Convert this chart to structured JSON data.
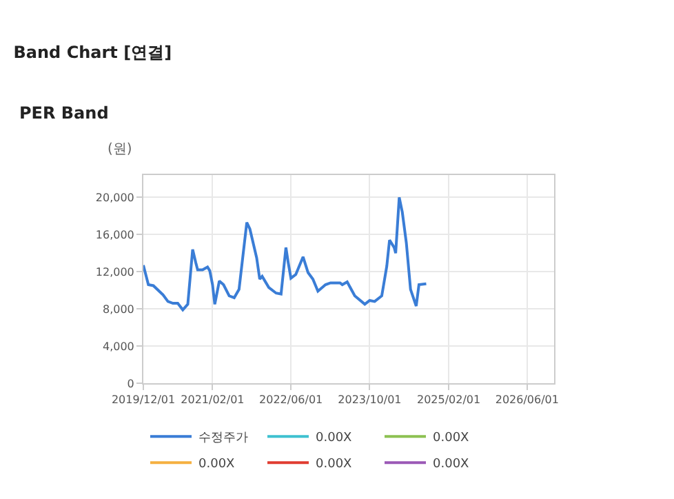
{
  "chart_data": {
    "type": "line",
    "title": "Band Chart [연결]",
    "subtitle": "PER Band",
    "ylabel": "(원)",
    "x": [
      "2019-12-01",
      "2020-01-01",
      "2020-02-01",
      "2020-04-01",
      "2020-05-01",
      "2020-06-01",
      "2020-07-01",
      "2020-08-01",
      "2020-09-01",
      "2020-10-01",
      "2020-10-20",
      "2020-11-01",
      "2020-12-01",
      "2021-01-01",
      "2021-01-15",
      "2021-02-01",
      "2021-02-15",
      "2021-03-15",
      "2021-04-10",
      "2021-05-15",
      "2021-06-15",
      "2021-07-15",
      "2021-09-01",
      "2021-09-20",
      "2021-11-01",
      "2021-11-20",
      "2021-12-05",
      "2022-01-15",
      "2022-03-01",
      "2022-04-01",
      "2022-05-01",
      "2022-05-15",
      "2022-06-01",
      "2022-07-01",
      "2022-08-15",
      "2022-09-15",
      "2022-10-15",
      "2022-11-15",
      "2023-01-01",
      "2023-02-01",
      "2023-04-01",
      "2023-04-15",
      "2023-05-15",
      "2023-07-01",
      "2023-09-01",
      "2023-10-01",
      "2023-11-01",
      "2023-12-15",
      "2024-01-15",
      "2024-02-01",
      "2024-03-01",
      "2024-03-10",
      "2024-04-01",
      "2024-04-20",
      "2024-05-15",
      "2024-06-10",
      "2024-07-15",
      "2024-08-01",
      "2024-09-15"
    ],
    "series": [
      {
        "name": "수정주가",
        "color": "#3a7dd6",
        "values": [
          12700,
          10600,
          10500,
          9500,
          8800,
          8600,
          8600,
          7900,
          8500,
          14400,
          13000,
          12200,
          12200,
          12500,
          12100,
          10600,
          8500,
          11000,
          10600,
          9400,
          9200,
          10100,
          17300,
          16600,
          13500,
          11200,
          11500,
          10300,
          9700,
          9600,
          14600,
          13000,
          11300,
          11700,
          13600,
          11900,
          11200,
          9900,
          10600,
          10800,
          10800,
          10600,
          10900,
          9400,
          8500,
          8900,
          8800,
          9400,
          12600,
          15400,
          14600,
          14000,
          20000,
          18400,
          15100,
          10100,
          8300,
          10600,
          10700
        ]
      },
      {
        "name": "0.00X",
        "color": "#3fc1d0",
        "values": [
          null,
          null,
          null,
          null,
          null,
          null,
          null,
          null,
          null,
          null,
          null,
          null,
          null,
          null,
          null,
          null,
          null,
          null,
          null,
          null,
          null,
          null,
          null,
          null,
          null,
          null,
          null,
          null,
          null,
          null,
          null,
          null,
          null,
          null,
          null,
          null,
          null,
          null,
          null,
          null,
          null,
          null,
          null,
          null,
          null,
          null,
          null,
          null,
          null,
          null,
          null,
          null,
          null,
          null,
          null,
          null,
          null,
          null,
          null
        ]
      },
      {
        "name": "0.00X",
        "color": "#8dc152",
        "values": [
          null,
          null,
          null,
          null,
          null,
          null,
          null,
          null,
          null,
          null,
          null,
          null,
          null,
          null,
          null,
          null,
          null,
          null,
          null,
          null,
          null,
          null,
          null,
          null,
          null,
          null,
          null,
          null,
          null,
          null,
          null,
          null,
          null,
          null,
          null,
          null,
          null,
          null,
          null,
          null,
          null,
          null,
          null,
          null,
          null,
          null,
          null,
          null,
          null,
          null,
          null,
          null,
          null,
          null,
          null,
          null,
          null,
          null,
          null
        ]
      },
      {
        "name": "0.00X",
        "color": "#f5b040",
        "values": [
          null,
          null,
          null,
          null,
          null,
          null,
          null,
          null,
          null,
          null,
          null,
          null,
          null,
          null,
          null,
          null,
          null,
          null,
          null,
          null,
          null,
          null,
          null,
          null,
          null,
          null,
          null,
          null,
          null,
          null,
          null,
          null,
          null,
          null,
          null,
          null,
          null,
          null,
          null,
          null,
          null,
          null,
          null,
          null,
          null,
          null,
          null,
          null,
          null,
          null,
          null,
          null,
          null,
          null,
          null,
          null,
          null,
          null,
          null
        ]
      },
      {
        "name": "0.00X",
        "color": "#e03c31",
        "values": [
          null,
          null,
          null,
          null,
          null,
          null,
          null,
          null,
          null,
          null,
          null,
          null,
          null,
          null,
          null,
          null,
          null,
          null,
          null,
          null,
          null,
          null,
          null,
          null,
          null,
          null,
          null,
          null,
          null,
          null,
          null,
          null,
          null,
          null,
          null,
          null,
          null,
          null,
          null,
          null,
          null,
          null,
          null,
          null,
          null,
          null,
          null,
          null,
          null,
          null,
          null,
          null,
          null,
          null,
          null,
          null,
          null,
          null,
          null
        ]
      },
      {
        "name": "0.00X",
        "color": "#9b59b6",
        "values": [
          null,
          null,
          null,
          null,
          null,
          null,
          null,
          null,
          null,
          null,
          null,
          null,
          null,
          null,
          null,
          null,
          null,
          null,
          null,
          null,
          null,
          null,
          null,
          null,
          null,
          null,
          null,
          null,
          null,
          null,
          null,
          null,
          null,
          null,
          null,
          null,
          null,
          null,
          null,
          null,
          null,
          null,
          null,
          null,
          null,
          null,
          null,
          null,
          null,
          null,
          null,
          null,
          null,
          null,
          null,
          null,
          null,
          null,
          null
        ]
      }
    ],
    "xlim": [
      "2019-12-01",
      "2026-11-15"
    ],
    "xticks": [
      {
        "value": "2019-12-01",
        "label": "2019/12/01"
      },
      {
        "value": "2021-02-01",
        "label": "2021/02/01"
      },
      {
        "value": "2022-06-01",
        "label": "2022/06/01"
      },
      {
        "value": "2023-10-01",
        "label": "2023/10/01"
      },
      {
        "value": "2025-02-01",
        "label": "2025/02/01"
      },
      {
        "value": "2026-06-01",
        "label": "2026/06/01"
      }
    ],
    "ylim": [
      0,
      22400
    ],
    "yticks": [
      0,
      {
        "value": 4000,
        "label": "4,000"
      },
      {
        "value": 8000,
        "label": "8,000"
      },
      {
        "value": 12000,
        "label": "12,000"
      },
      {
        "value": 16000,
        "label": "16,000"
      },
      {
        "value": 20000,
        "label": "20,000"
      }
    ],
    "grid": true,
    "legend": "bottom",
    "marker": "none",
    "line_style": "solid"
  }
}
